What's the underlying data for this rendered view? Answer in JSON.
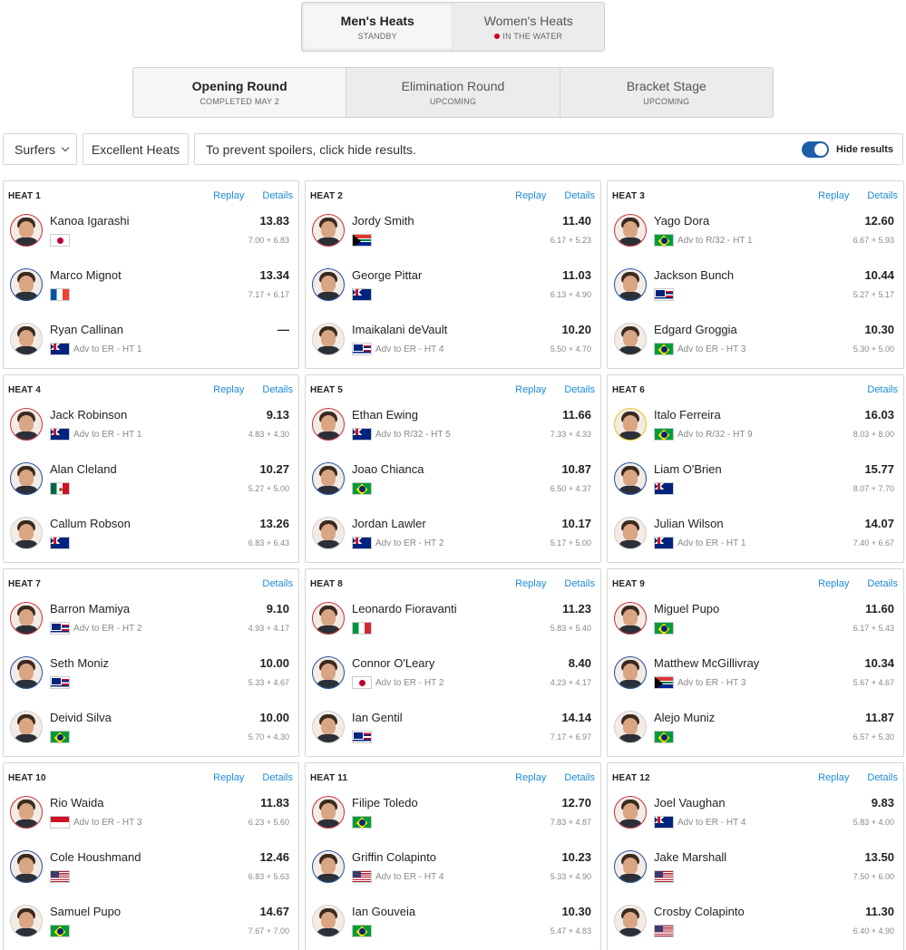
{
  "gender_tabs": [
    {
      "title": "Men's Heats",
      "status": "STANDBY",
      "live": false,
      "active": true
    },
    {
      "title": "Women's Heats",
      "status": "IN THE WATER",
      "live": true,
      "active": false
    }
  ],
  "round_tabs": [
    {
      "title": "Opening Round",
      "status": "COMPLETED MAY 2",
      "active": true
    },
    {
      "title": "Elimination Round",
      "status": "UPCOMING",
      "active": false
    },
    {
      "title": "Bracket Stage",
      "status": "UPCOMING",
      "active": false
    }
  ],
  "filters": {
    "surfers_label": "Surfers",
    "excellent_label": "Excellent Heats",
    "spoiler_text": "To prevent spoilers, click hide results.",
    "hide_results_label": "Hide results",
    "hide_results_on": true
  },
  "colors": {
    "accent": "#1d8ad6",
    "toggle": "#1f5fa8",
    "live": "#d0021b"
  },
  "heats": [
    {
      "title": "HEAT 1",
      "replay": "Replay",
      "details": "Details",
      "surfers": [
        {
          "name": "Kanoa Igarashi",
          "flag": "jp",
          "ring": "red",
          "total": "13.83",
          "waves": "7.00 + 6.83",
          "adv": ""
        },
        {
          "name": "Marco Mignot",
          "flag": "fr",
          "ring": "blue",
          "total": "13.34",
          "waves": "7.17 + 6.17",
          "adv": ""
        },
        {
          "name": "Ryan Callinan",
          "flag": "au",
          "ring": "white",
          "total": "—",
          "waves": "",
          "adv": "Adv to ER - HT 1"
        }
      ]
    },
    {
      "title": "HEAT 2",
      "replay": "Replay",
      "details": "Details",
      "surfers": [
        {
          "name": "Jordy Smith",
          "flag": "za",
          "ring": "red",
          "total": "11.40",
          "waves": "6.17 + 5.23",
          "adv": ""
        },
        {
          "name": "George Pittar",
          "flag": "au",
          "ring": "blue",
          "total": "11.03",
          "waves": "6.13 + 4.90",
          "adv": ""
        },
        {
          "name": "Imaikalani deVault",
          "flag": "hi",
          "ring": "white",
          "total": "10.20",
          "waves": "5.50 + 4.70",
          "adv": "Adv to ER - HT 4"
        }
      ]
    },
    {
      "title": "HEAT 3",
      "replay": "Replay",
      "details": "Details",
      "surfers": [
        {
          "name": "Yago Dora",
          "flag": "br",
          "ring": "red",
          "total": "12.60",
          "waves": "6.67 + 5.93",
          "adv": "Adv to R/32 - HT 1"
        },
        {
          "name": "Jackson Bunch",
          "flag": "hi",
          "ring": "blue",
          "total": "10.44",
          "waves": "5.27 + 5.17",
          "adv": ""
        },
        {
          "name": "Edgard Groggia",
          "flag": "br",
          "ring": "white",
          "total": "10.30",
          "waves": "5.30 + 5.00",
          "adv": "Adv to ER - HT 3"
        }
      ]
    },
    {
      "title": "HEAT 4",
      "replay": "Replay",
      "details": "Details",
      "surfers": [
        {
          "name": "Jack Robinson",
          "flag": "au",
          "ring": "red",
          "total": "9.13",
          "waves": "4.83 + 4.30",
          "adv": "Adv to ER - HT 1"
        },
        {
          "name": "Alan Cleland",
          "flag": "mx",
          "ring": "blue",
          "total": "10.27",
          "waves": "5.27 + 5.00",
          "adv": ""
        },
        {
          "name": "Callum Robson",
          "flag": "au",
          "ring": "white",
          "total": "13.26",
          "waves": "6.83 + 6.43",
          "adv": ""
        }
      ]
    },
    {
      "title": "HEAT 5",
      "replay": "Replay",
      "details": "Details",
      "surfers": [
        {
          "name": "Ethan Ewing",
          "flag": "au",
          "ring": "red",
          "total": "11.66",
          "waves": "7.33 + 4.33",
          "adv": "Adv to R/32 - HT 5"
        },
        {
          "name": "Joao Chianca",
          "flag": "br",
          "ring": "blue",
          "total": "10.87",
          "waves": "6.50 + 4.37",
          "adv": ""
        },
        {
          "name": "Jordan Lawler",
          "flag": "au",
          "ring": "white",
          "total": "10.17",
          "waves": "5.17 + 5.00",
          "adv": "Adv to ER - HT 2"
        }
      ]
    },
    {
      "title": "HEAT 6",
      "replay": "",
      "details": "Details",
      "surfers": [
        {
          "name": "Italo Ferreira",
          "flag": "br",
          "ring": "yellow",
          "total": "16.03",
          "waves": "8.03 + 8.00",
          "adv": "Adv to R/32 - HT 9"
        },
        {
          "name": "Liam O'Brien",
          "flag": "au",
          "ring": "blue",
          "total": "15.77",
          "waves": "8.07 + 7.70",
          "adv": ""
        },
        {
          "name": "Julian Wilson",
          "flag": "au",
          "ring": "white",
          "total": "14.07",
          "waves": "7.40 + 6.67",
          "adv": "Adv to ER - HT 1"
        }
      ]
    },
    {
      "title": "HEAT 7",
      "replay": "",
      "details": "Details",
      "surfers": [
        {
          "name": "Barron Mamiya",
          "flag": "hi",
          "ring": "red",
          "total": "9.10",
          "waves": "4.93 + 4.17",
          "adv": "Adv to ER - HT 2"
        },
        {
          "name": "Seth Moniz",
          "flag": "hi",
          "ring": "blue",
          "total": "10.00",
          "waves": "5.33 + 4.67",
          "adv": ""
        },
        {
          "name": "Deivid Silva",
          "flag": "br",
          "ring": "white",
          "total": "10.00",
          "waves": "5.70 + 4.30",
          "adv": ""
        }
      ]
    },
    {
      "title": "HEAT 8",
      "replay": "Replay",
      "details": "Details",
      "surfers": [
        {
          "name": "Leonardo Fioravanti",
          "flag": "it",
          "ring": "red",
          "total": "11.23",
          "waves": "5.83 + 5.40",
          "adv": ""
        },
        {
          "name": "Connor O'Leary",
          "flag": "jp",
          "ring": "blue",
          "total": "8.40",
          "waves": "4.23 + 4.17",
          "adv": "Adv to ER - HT 2"
        },
        {
          "name": "Ian Gentil",
          "flag": "hi",
          "ring": "white",
          "total": "14.14",
          "waves": "7.17 + 6.97",
          "adv": ""
        }
      ]
    },
    {
      "title": "HEAT 9",
      "replay": "Replay",
      "details": "Details",
      "surfers": [
        {
          "name": "Miguel Pupo",
          "flag": "br",
          "ring": "red",
          "total": "11.60",
          "waves": "6.17 + 5.43",
          "adv": ""
        },
        {
          "name": "Matthew McGillivray",
          "flag": "za",
          "ring": "blue",
          "total": "10.34",
          "waves": "5.67 + 4.67",
          "adv": "Adv to ER - HT 3"
        },
        {
          "name": "Alejo Muniz",
          "flag": "br",
          "ring": "white",
          "total": "11.87",
          "waves": "6.57 + 5.30",
          "adv": ""
        }
      ]
    },
    {
      "title": "HEAT 10",
      "replay": "Replay",
      "details": "Details",
      "surfers": [
        {
          "name": "Rio Waida",
          "flag": "id",
          "ring": "red",
          "total": "11.83",
          "waves": "6.23 + 5.60",
          "adv": "Adv to ER - HT 3"
        },
        {
          "name": "Cole Houshmand",
          "flag": "us",
          "ring": "blue",
          "total": "12.46",
          "waves": "6.83 + 5.63",
          "adv": ""
        },
        {
          "name": "Samuel Pupo",
          "flag": "br",
          "ring": "white",
          "total": "14.67",
          "waves": "7.67 + 7.00",
          "adv": ""
        }
      ]
    },
    {
      "title": "HEAT 11",
      "replay": "Replay",
      "details": "Details",
      "surfers": [
        {
          "name": "Filipe Toledo",
          "flag": "br",
          "ring": "red",
          "total": "12.70",
          "waves": "7.83 + 4.87",
          "adv": ""
        },
        {
          "name": "Griffin Colapinto",
          "flag": "us",
          "ring": "blue",
          "total": "10.23",
          "waves": "5.33 + 4.90",
          "adv": "Adv to ER - HT 4"
        },
        {
          "name": "Ian Gouveia",
          "flag": "br",
          "ring": "white",
          "total": "10.30",
          "waves": "5.47 + 4.83",
          "adv": ""
        }
      ]
    },
    {
      "title": "HEAT 12",
      "replay": "Replay",
      "details": "Details",
      "surfers": [
        {
          "name": "Joel Vaughan",
          "flag": "au",
          "ring": "red",
          "total": "9.83",
          "waves": "5.83 + 4.00",
          "adv": "Adv to ER - HT 4"
        },
        {
          "name": "Jake Marshall",
          "flag": "us",
          "ring": "blue",
          "total": "13.50",
          "waves": "7.50 + 6.00",
          "adv": ""
        },
        {
          "name": "Crosby Colapinto",
          "flag": "us",
          "ring": "white",
          "total": "11.30",
          "waves": "6.40 + 4.90",
          "adv": ""
        }
      ]
    }
  ]
}
